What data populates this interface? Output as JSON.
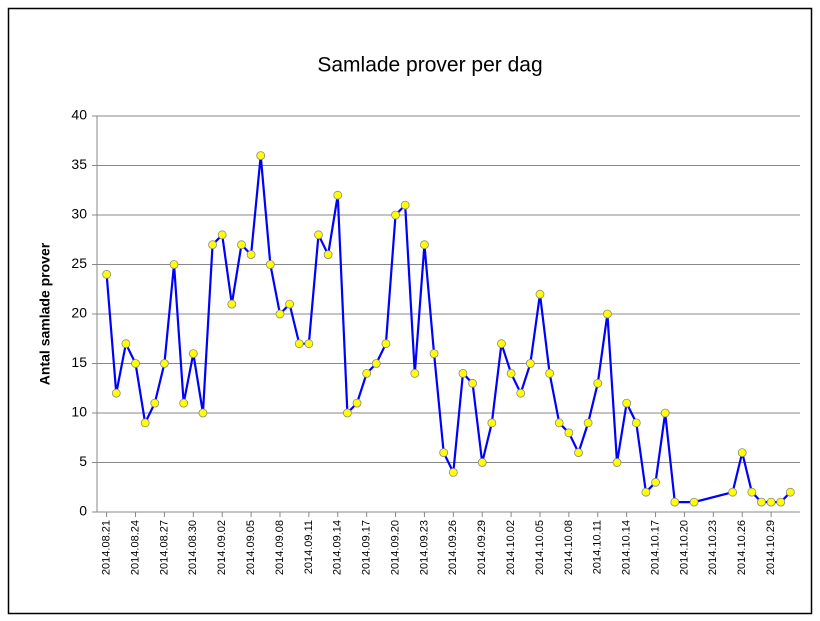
{
  "chart_data": {
    "type": "line",
    "title": "Samlade prover per dag",
    "y_label": "Antal samlade prover",
    "x": [
      "2014-08-21",
      "2014-08-22",
      "2014-08-23",
      "2014-08-24",
      "2014-08-25",
      "2014-08-26",
      "2014-08-27",
      "2014-08-28",
      "2014-08-29",
      "2014-08-30",
      "2014-08-31",
      "2014-09-01",
      "2014-09-02",
      "2014-09-03",
      "2014-09-04",
      "2014-09-05",
      "2014-09-06",
      "2014-09-07",
      "2014-09-08",
      "2014-09-09",
      "2014-09-10",
      "2014-09-11",
      "2014-09-12",
      "2014-09-13",
      "2014-09-14",
      "2014-09-15",
      "2014-09-16",
      "2014-09-17",
      "2014-09-18",
      "2014-09-19",
      "2014-09-20",
      "2014-09-21",
      "2014-09-22",
      "2014-09-23",
      "2014-09-24",
      "2014-09-25",
      "2014-09-26",
      "2014-09-27",
      "2014-09-28",
      "2014-09-29",
      "2014-09-30",
      "2014-10-01",
      "2014-10-02",
      "2014-10-03",
      "2014-10-04",
      "2014-10-05",
      "2014-10-06",
      "2014-10-07",
      "2014-10-08",
      "2014-10-09",
      "2014-10-10",
      "2014-10-11",
      "2014-10-12",
      "2014-10-13",
      "2014-10-14",
      "2014-10-15",
      "2014-10-16",
      "2014-10-17",
      "2014-10-18",
      "2014-10-19",
      "2014-10-21",
      "2014-10-25",
      "2014-10-26",
      "2014-10-27",
      "2014-10-28",
      "2014-10-29",
      "2014-10-30",
      "2014-10-31"
    ],
    "values": [
      24,
      12,
      17,
      15,
      9,
      11,
      15,
      25,
      11,
      16,
      10,
      27,
      28,
      21,
      27,
      26,
      36,
      25,
      20,
      21,
      17,
      17,
      28,
      26,
      32,
      10,
      11,
      14,
      15,
      17,
      30,
      31,
      14,
      27,
      16,
      6,
      4,
      14,
      13,
      5,
      9,
      17,
      14,
      12,
      15,
      22,
      14,
      9,
      8,
      6,
      9,
      13,
      20,
      5,
      11,
      9,
      2,
      3,
      10,
      1,
      1,
      2,
      6,
      2,
      1,
      1,
      1,
      2
    ],
    "color": "#0000ff",
    "marker_color": "#ffff00",
    "xlim": [
      "2014-08-20",
      "2014-11-01"
    ],
    "xticks": [
      {
        "value": "2014-08-21",
        "label": "2014.08.21"
      },
      {
        "value": "2014-08-24",
        "label": "2014.08.24"
      },
      {
        "value": "2014-08-27",
        "label": "2014.08.27"
      },
      {
        "value": "2014-08-30",
        "label": "2014.08.30"
      },
      {
        "value": "2014-09-02",
        "label": "2014.09.02"
      },
      {
        "value": "2014-09-05",
        "label": "2014.09.05"
      },
      {
        "value": "2014-09-08",
        "label": "2014.09.08"
      },
      {
        "value": "2014-09-11",
        "label": "2014.09.11"
      },
      {
        "value": "2014-09-14",
        "label": "2014.09.14"
      },
      {
        "value": "2014-09-17",
        "label": "2014.09.17"
      },
      {
        "value": "2014-09-20",
        "label": "2014.09.20"
      },
      {
        "value": "2014-09-23",
        "label": "2014.09.23"
      },
      {
        "value": "2014-09-26",
        "label": "2014.09.26"
      },
      {
        "value": "2014-09-29",
        "label": "2014.09.29"
      },
      {
        "value": "2014-10-02",
        "label": "2014.10.02"
      },
      {
        "value": "2014-10-05",
        "label": "2014.10.05"
      },
      {
        "value": "2014-10-08",
        "label": "2014.10.08"
      },
      {
        "value": "2014-10-11",
        "label": "2014.10.11"
      },
      {
        "value": "2014-10-14",
        "label": "2014.10.14"
      },
      {
        "value": "2014-10-17",
        "label": "2014.10.17"
      },
      {
        "value": "2014-10-20",
        "label": "2014.10.20"
      },
      {
        "value": "2014-10-23",
        "label": "2014.10.23"
      },
      {
        "value": "2014-10-26",
        "label": "2014.10.26"
      },
      {
        "value": "2014-10-29",
        "label": "2014.10.29"
      }
    ],
    "ylim": [
      0,
      40
    ],
    "yticks": [
      0,
      5,
      10,
      15,
      20,
      25,
      30,
      35,
      40
    ],
    "grid": true
  }
}
